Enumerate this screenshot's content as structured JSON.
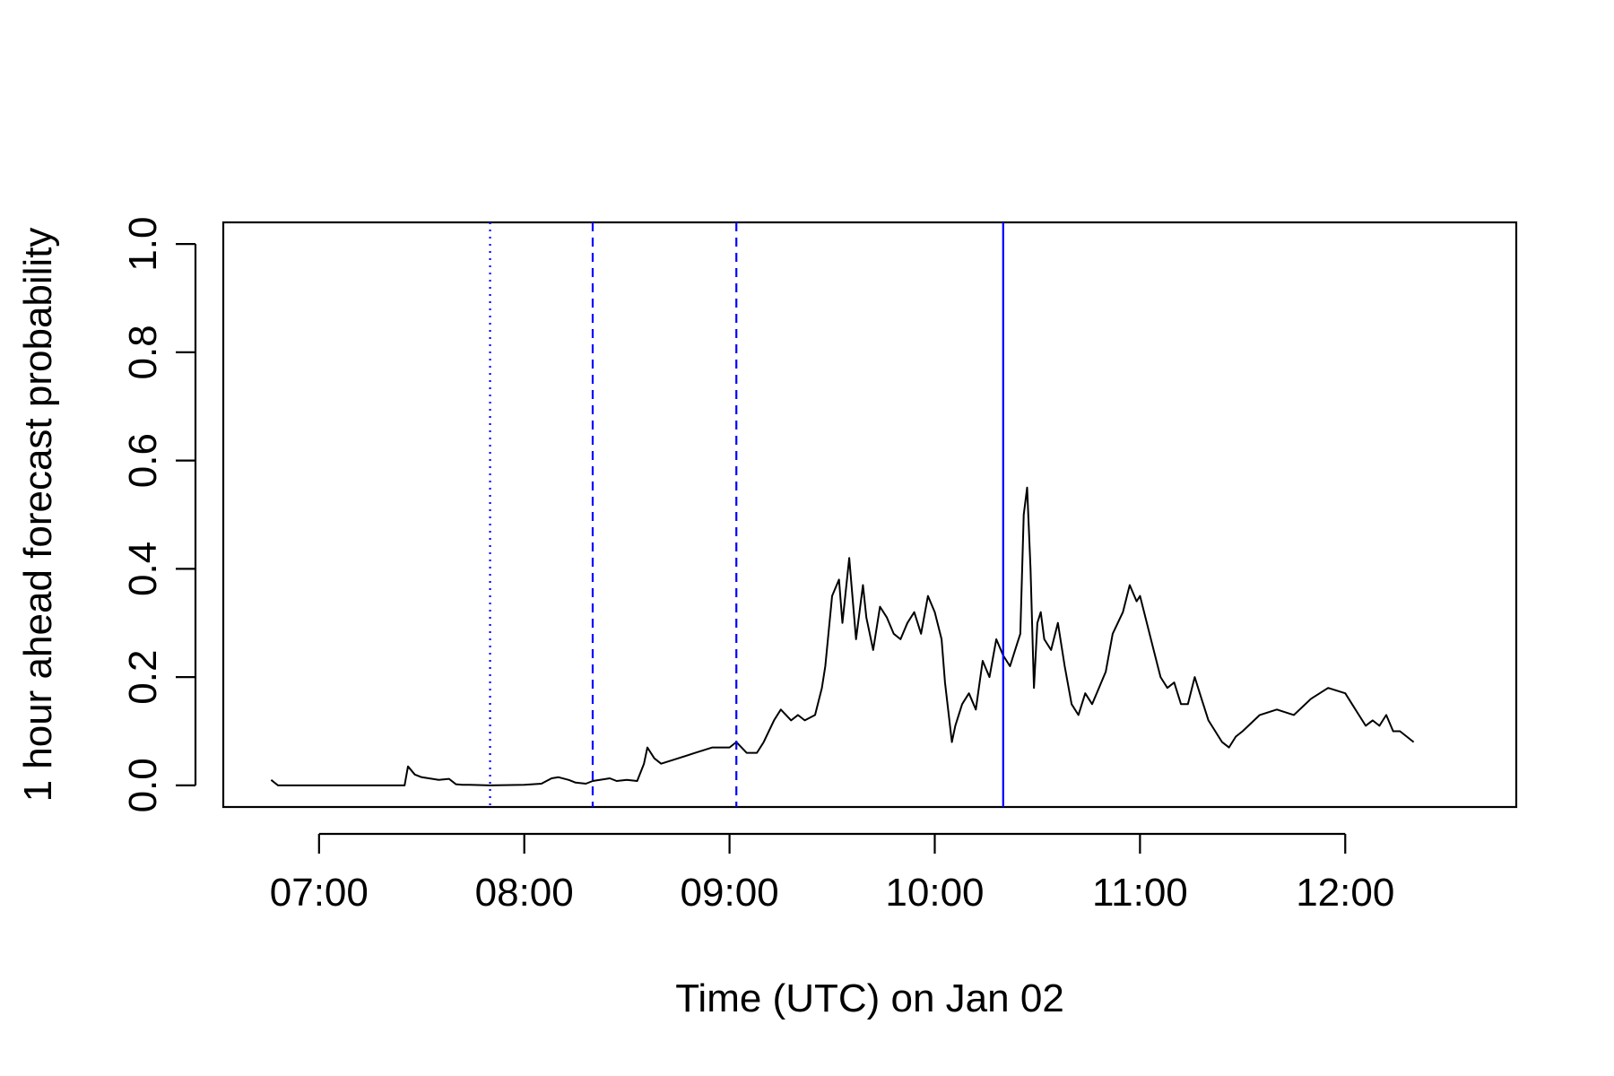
{
  "chart_data": {
    "type": "line",
    "title": "",
    "xlabel": "Time (UTC) on Jan 02",
    "ylabel": "1 hour ahead forecast probability",
    "x_unit": "time of day (HH:MM, UTC)",
    "xlim": [
      "06:32",
      "12:50"
    ],
    "ylim": [
      -0.04,
      1.04
    ],
    "x_ticks": [
      "07:00",
      "08:00",
      "09:00",
      "10:00",
      "11:00",
      "12:00"
    ],
    "y_ticks": [
      "0.0",
      "0.2",
      "0.4",
      "0.6",
      "0.8",
      "1.0"
    ],
    "grid": false,
    "legend": "none",
    "series": [
      {
        "color": "#000000",
        "x": [
          "06:46",
          "06:48",
          "06:52",
          "07:00",
          "07:10",
          "07:20",
          "07:25",
          "07:26",
          "07:28",
          "07:30",
          "07:35",
          "07:38",
          "07:40",
          "07:42",
          "07:43",
          "07:44",
          "07:50",
          "08:00",
          "08:05",
          "08:08",
          "08:10",
          "08:13",
          "08:15",
          "08:18",
          "08:20",
          "08:25",
          "08:27",
          "08:30",
          "08:33",
          "08:35",
          "08:36",
          "08:38",
          "08:40",
          "08:45",
          "08:50",
          "08:55",
          "09:00",
          "09:02",
          "09:05",
          "09:08",
          "09:10",
          "09:13",
          "09:15",
          "09:18",
          "09:20",
          "09:22",
          "09:25",
          "09:27",
          "09:28",
          "09:30",
          "09:32",
          "09:33",
          "09:35",
          "09:37",
          "09:39",
          "09:40",
          "09:42",
          "09:44",
          "09:46",
          "09:48",
          "09:50",
          "09:52",
          "09:54",
          "09:56",
          "09:58",
          "10:00",
          "10:02",
          "10:03",
          "10:05",
          "10:06",
          "10:08",
          "10:10",
          "10:12",
          "10:14",
          "10:16",
          "10:18",
          "10:20",
          "10:22",
          "10:24",
          "10:25",
          "10:26",
          "10:27",
          "10:28",
          "10:29",
          "10:30",
          "10:31",
          "10:32",
          "10:34",
          "10:36",
          "10:38",
          "10:40",
          "10:42",
          "10:44",
          "10:46",
          "10:48",
          "10:50",
          "10:52",
          "10:55",
          "10:57",
          "10:59",
          "11:00",
          "11:02",
          "11:04",
          "11:06",
          "11:08",
          "11:10",
          "11:12",
          "11:14",
          "11:16",
          "11:18",
          "11:20",
          "11:22",
          "11:24",
          "11:26",
          "11:28",
          "11:30",
          "11:35",
          "11:40",
          "11:45",
          "11:50",
          "11:55",
          "12:00",
          "12:02",
          "12:04",
          "12:06",
          "12:08",
          "12:10",
          "12:12",
          "12:14",
          "12:16",
          "12:18",
          "12:20"
        ],
        "y": [
          0.01,
          0.0,
          0.0,
          0.0,
          0.0,
          0.0,
          0.0,
          0.035,
          0.02,
          0.015,
          0.01,
          0.012,
          0.002,
          0.001,
          0.001,
          0.001,
          0.0,
          0.001,
          0.003,
          0.013,
          0.015,
          0.01,
          0.005,
          0.003,
          0.008,
          0.013,
          0.008,
          0.01,
          0.008,
          0.04,
          0.07,
          0.05,
          0.04,
          0.05,
          0.06,
          0.07,
          0.07,
          0.08,
          0.06,
          0.06,
          0.08,
          0.12,
          0.14,
          0.12,
          0.13,
          0.12,
          0.13,
          0.18,
          0.22,
          0.35,
          0.38,
          0.3,
          0.42,
          0.27,
          0.37,
          0.31,
          0.25,
          0.33,
          0.31,
          0.28,
          0.27,
          0.3,
          0.32,
          0.28,
          0.35,
          0.32,
          0.27,
          0.19,
          0.08,
          0.11,
          0.15,
          0.17,
          0.14,
          0.23,
          0.2,
          0.27,
          0.24,
          0.22,
          0.26,
          0.28,
          0.5,
          0.55,
          0.4,
          0.18,
          0.3,
          0.32,
          0.27,
          0.25,
          0.3,
          0.22,
          0.15,
          0.13,
          0.17,
          0.15,
          0.18,
          0.21,
          0.28,
          0.32,
          0.37,
          0.34,
          0.35,
          0.3,
          0.25,
          0.2,
          0.18,
          0.19,
          0.15,
          0.15,
          0.2,
          0.16,
          0.12,
          0.1,
          0.08,
          0.07,
          0.09,
          0.1,
          0.13,
          0.14,
          0.13,
          0.16,
          0.18,
          0.17,
          0.15,
          0.13,
          0.11,
          0.12,
          0.11,
          0.13,
          0.1,
          0.1,
          0.09,
          0.08
        ]
      }
    ],
    "vertical_lines": [
      {
        "x": "07:50",
        "style": "dotted",
        "color": "#0000ff"
      },
      {
        "x": "08:20",
        "style": "dashed",
        "color": "#0000ff"
      },
      {
        "x": "09:02",
        "style": "dashed",
        "color": "#0000ff"
      },
      {
        "x": "10:20",
        "style": "solid",
        "color": "#0000ff"
      }
    ]
  }
}
